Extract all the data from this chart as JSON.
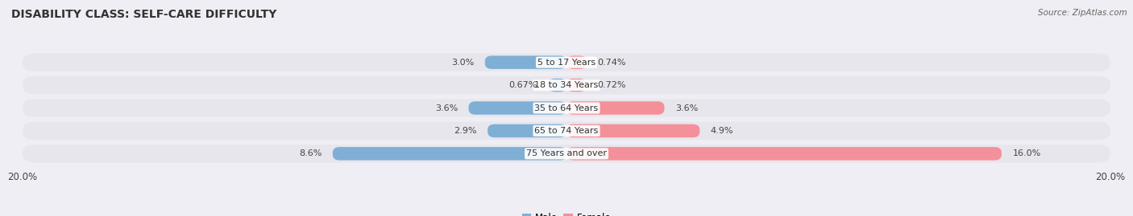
{
  "title": "DISABILITY CLASS: SELF-CARE DIFFICULTY",
  "source": "Source: ZipAtlas.com",
  "categories": [
    "5 to 17 Years",
    "18 to 34 Years",
    "35 to 64 Years",
    "65 to 74 Years",
    "75 Years and over"
  ],
  "male_values": [
    3.0,
    0.67,
    3.6,
    2.9,
    8.6
  ],
  "female_values": [
    0.74,
    0.72,
    3.6,
    4.9,
    16.0
  ],
  "male_labels": [
    "3.0%",
    "0.67%",
    "3.6%",
    "2.9%",
    "8.6%"
  ],
  "female_labels": [
    "0.74%",
    "0.72%",
    "3.6%",
    "4.9%",
    "16.0%"
  ],
  "male_color": "#7fafd4",
  "female_color": "#f4909a",
  "axis_limit": 20.0,
  "x_tick_left": "20.0%",
  "x_tick_right": "20.0%",
  "background_color": "#eeeef4",
  "bar_background": "#e2e2ea",
  "row_bg_color": "#e6e6ec",
  "title_fontsize": 10,
  "label_fontsize": 8,
  "cat_fontsize": 8,
  "legend_fontsize": 8.5
}
